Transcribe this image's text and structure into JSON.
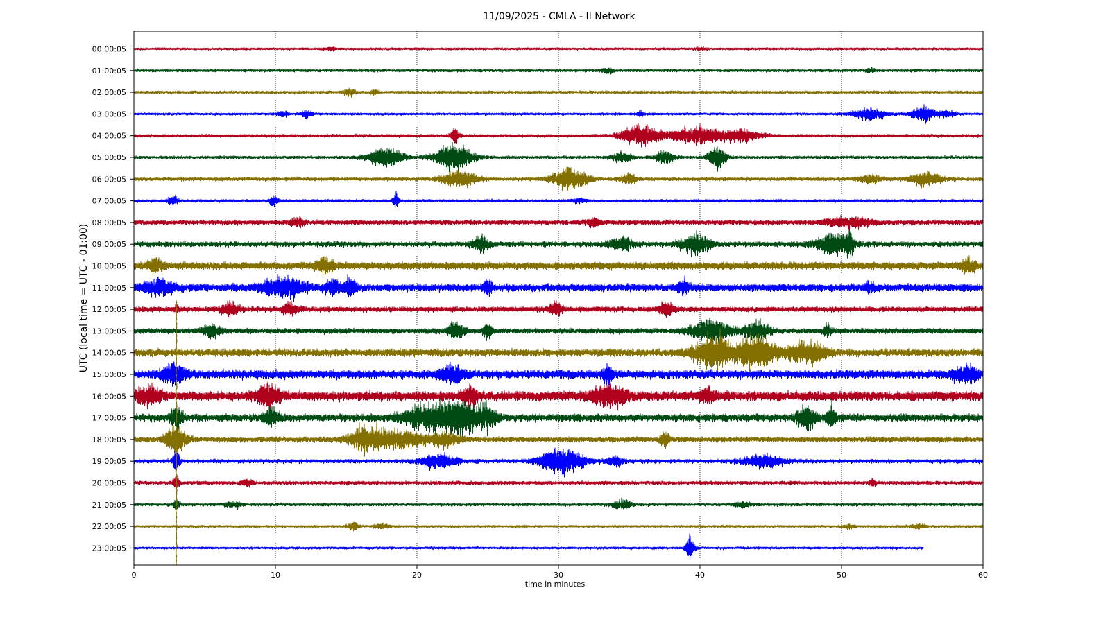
{
  "chart_data": {
    "type": "line",
    "title": "11/09/2025 - CMLA - II Network",
    "xlabel": "time in minutes",
    "ylabel": "UTC (local time = UTC - 01:00)",
    "xlim": [
      0,
      60
    ],
    "x_ticks": [
      "0",
      "10",
      "20",
      "30",
      "40",
      "50",
      "60"
    ],
    "grid": "vertical dotted at each 10 minutes",
    "trace_colors": [
      "#b0001e",
      "#004b14",
      "#837000",
      "#0000ff"
    ],
    "rows": [
      {
        "label": "00:00:05",
        "noise": 2.5,
        "events": [
          [
            14,
            0.5,
            2
          ],
          [
            40,
            0.5,
            2
          ]
        ],
        "end": 60
      },
      {
        "label": "01:00:05",
        "noise": 3,
        "events": [
          [
            33.5,
            0.4,
            4
          ],
          [
            52,
            0.3,
            4
          ]
        ],
        "end": 60
      },
      {
        "label": "02:00:05",
        "noise": 3,
        "events": [
          [
            15.2,
            0.4,
            6
          ],
          [
            17,
            0.3,
            4
          ]
        ],
        "end": 60
      },
      {
        "label": "03:00:05",
        "noise": 2.5,
        "events": [
          [
            10.5,
            0.4,
            5
          ],
          [
            12.2,
            0.4,
            6
          ],
          [
            35.8,
            0.2,
            6
          ],
          [
            52,
            1.2,
            10
          ],
          [
            55.8,
            0.8,
            13
          ],
          [
            57.5,
            0.6,
            6
          ]
        ],
        "end": 60
      },
      {
        "label": "04:00:05",
        "noise": 3,
        "events": [
          [
            22.7,
            0.3,
            14
          ],
          [
            35.8,
            1.3,
            18
          ],
          [
            39.8,
            1.8,
            15
          ],
          [
            43,
            1.2,
            10
          ]
        ],
        "end": 60
      },
      {
        "label": "05:00:05",
        "noise": 3,
        "events": [
          [
            17.8,
            1.2,
            17
          ],
          [
            22.6,
            1.3,
            24
          ],
          [
            34.5,
            0.7,
            8
          ],
          [
            37.5,
            0.7,
            10
          ],
          [
            41.2,
            0.6,
            20
          ]
        ],
        "end": 60
      },
      {
        "label": "06:00:05",
        "noise": 3.5,
        "events": [
          [
            23,
            1.2,
            14
          ],
          [
            30.8,
            1.2,
            18
          ],
          [
            35,
            0.5,
            9
          ],
          [
            52,
            0.8,
            7
          ],
          [
            56,
            1,
            12
          ]
        ],
        "end": 60
      },
      {
        "label": "07:00:05",
        "noise": 3,
        "events": [
          [
            2.8,
            0.4,
            7
          ],
          [
            9.9,
            0.3,
            10
          ],
          [
            18.5,
            0.2,
            12
          ],
          [
            31.5,
            0.5,
            4
          ]
        ],
        "end": 60
      },
      {
        "label": "08:00:05",
        "noise": 4.5,
        "events": [
          [
            11.5,
            0.5,
            7
          ],
          [
            32.5,
            0.5,
            7
          ],
          [
            50.5,
            1.5,
            9
          ]
        ],
        "end": 60
      },
      {
        "label": "09:00:05",
        "noise": 5,
        "events": [
          [
            24.5,
            0.6,
            13
          ],
          [
            34.5,
            0.8,
            11
          ],
          [
            39.7,
            1,
            17
          ],
          [
            49.5,
            1.3,
            16
          ],
          [
            50.6,
            0.2,
            20
          ]
        ],
        "end": 60
      },
      {
        "label": "10:00:05",
        "noise": 7,
        "events": [
          [
            1.5,
            0.5,
            12
          ],
          [
            13.5,
            0.6,
            12
          ],
          [
            59,
            0.5,
            12
          ]
        ],
        "end": 60
      },
      {
        "label": "11:00:05",
        "noise": 7,
        "events": [
          [
            1.8,
            1,
            14
          ],
          [
            10.5,
            1.4,
            18
          ],
          [
            14,
            0.5,
            12
          ],
          [
            15.3,
            0.4,
            14
          ],
          [
            25,
            0.3,
            14
          ],
          [
            38.8,
            0.4,
            12
          ],
          [
            52,
            0.4,
            10
          ]
        ],
        "end": 60
      },
      {
        "label": "12:00:05",
        "noise": 5,
        "events": [
          [
            3,
            0.15,
            8
          ],
          [
            6.8,
            0.6,
            12
          ],
          [
            11,
            0.6,
            10
          ],
          [
            29.8,
            0.5,
            10
          ],
          [
            37.6,
            0.5,
            13
          ]
        ],
        "end": 60
      },
      {
        "label": "13:00:05",
        "noise": 5,
        "events": [
          [
            5.5,
            0.6,
            11
          ],
          [
            22.8,
            0.6,
            13
          ],
          [
            25,
            0.3,
            16
          ],
          [
            40.8,
            1.3,
            20
          ],
          [
            44,
            0.8,
            18
          ],
          [
            49,
            0.3,
            10
          ]
        ],
        "end": 60
      },
      {
        "label": "14:00:05",
        "noise": 7,
        "events": [
          [
            41,
            1.3,
            28
          ],
          [
            44,
            1.3,
            28
          ],
          [
            47.5,
            1.3,
            18
          ]
        ],
        "end": 60
      },
      {
        "label": "15:00:05",
        "noise": 8,
        "events": [
          [
            2.8,
            0.8,
            16
          ],
          [
            22.5,
            0.8,
            14
          ],
          [
            33.5,
            0.3,
            18
          ],
          [
            58.8,
            0.8,
            14
          ]
        ],
        "end": 60
      },
      {
        "label": "16:00:05",
        "noise": 9,
        "events": [
          [
            1,
            0.8,
            14
          ],
          [
            9.5,
            0.8,
            18
          ],
          [
            23.8,
            0.5,
            16
          ],
          [
            33.6,
            1.2,
            16
          ],
          [
            40.5,
            0.5,
            12
          ]
        ],
        "end": 60
      },
      {
        "label": "17:00:05",
        "noise": 7,
        "events": [
          [
            3,
            0.4,
            20
          ],
          [
            9.7,
            0.5,
            14
          ],
          [
            20.5,
            1.5,
            18
          ],
          [
            23,
            1.5,
            28
          ],
          [
            25,
            0.6,
            16
          ],
          [
            47.5,
            0.7,
            18
          ],
          [
            49.3,
            0.3,
            20
          ]
        ],
        "end": 60
      },
      {
        "label": "18:00:05",
        "noise": 5,
        "events": [
          [
            3,
            0.7,
            24
          ],
          [
            16.5,
            1.2,
            22
          ],
          [
            19,
            1.5,
            14
          ],
          [
            22,
            1,
            12
          ],
          [
            37.5,
            0.3,
            16
          ]
        ],
        "end": 60
      },
      {
        "label": "19:00:05",
        "noise": 4,
        "events": [
          [
            3,
            0.25,
            18
          ],
          [
            21.5,
            1.2,
            13
          ],
          [
            30.2,
            1.5,
            22
          ],
          [
            34,
            0.6,
            8
          ],
          [
            44.5,
            1.4,
            11
          ]
        ],
        "end": 60
      },
      {
        "label": "20:00:05",
        "noise": 3.5,
        "events": [
          [
            3,
            0.2,
            12
          ],
          [
            8,
            0.4,
            5
          ],
          [
            52.2,
            0.2,
            7
          ]
        ],
        "end": 60
      },
      {
        "label": "21:00:05",
        "noise": 3,
        "events": [
          [
            3,
            0.2,
            10
          ],
          [
            7,
            0.5,
            6
          ],
          [
            34.5,
            0.6,
            8
          ],
          [
            43,
            0.6,
            5
          ]
        ],
        "end": 60
      },
      {
        "label": "22:00:05",
        "noise": 2.5,
        "events": [
          [
            15.5,
            0.4,
            8
          ],
          [
            17.5,
            0.5,
            4
          ],
          [
            50.5,
            0.4,
            4
          ],
          [
            55.5,
            0.6,
            4
          ]
        ],
        "end": 60
      },
      {
        "label": "23:00:05",
        "noise": 2.5,
        "events": [
          [
            39.3,
            0.3,
            20
          ]
        ],
        "end": 55.8
      }
    ],
    "spikes": [
      {
        "x": 3,
        "from_row": 11.6,
        "to_row": 23.8
      }
    ]
  }
}
